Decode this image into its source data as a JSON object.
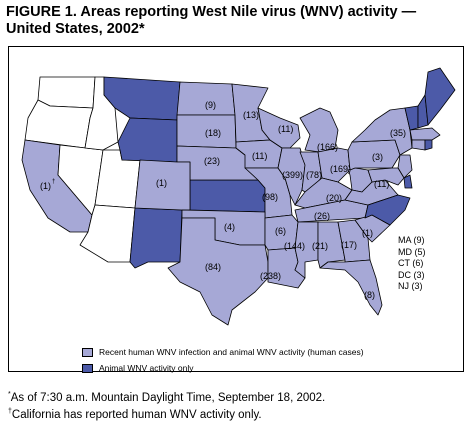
{
  "title": {
    "line1": "FIGURE 1. Areas reporting West Nile virus (WNV) activity —",
    "line2": "United States, 2002*"
  },
  "colors": {
    "human": "#a6a8d6",
    "animal": "#4c5aa8",
    "none": "#ffffff",
    "border": "#000000"
  },
  "state_labels": [
    {
      "id": "mt_label",
      "text": "(9)"
    },
    {
      "id": "mn_label",
      "text": "(13)"
    },
    {
      "id": "wi_label",
      "text": "(11)"
    },
    {
      "id": "mi_label",
      "text": "(166)"
    },
    {
      "id": "ny_label",
      "text": "(35)"
    },
    {
      "id": "sd_label",
      "text": "(18)"
    },
    {
      "id": "ne_label",
      "text": "(23)"
    },
    {
      "id": "ia_label",
      "text": "(11)"
    },
    {
      "id": "il_label",
      "text": "(399)"
    },
    {
      "id": "in_label",
      "text": "(78)"
    },
    {
      "id": "oh_label",
      "text": "(169)"
    },
    {
      "id": "pa_label",
      "text": "(3)"
    },
    {
      "id": "ca_label",
      "text": "(1)"
    },
    {
      "id": "co_label",
      "text": "(1)"
    },
    {
      "id": "mo_label",
      "text": "(98)"
    },
    {
      "id": "ky_label",
      "text": "(20)"
    },
    {
      "id": "va_label",
      "text": "(11)"
    },
    {
      "id": "tn_label",
      "text": "(26)"
    },
    {
      "id": "ok_label",
      "text": "(4)"
    },
    {
      "id": "ar_label",
      "text": "(6)"
    },
    {
      "id": "sc_label",
      "text": "(1)"
    },
    {
      "id": "tx_label",
      "text": "(84)"
    },
    {
      "id": "ms_label",
      "text": "(144)"
    },
    {
      "id": "al_label",
      "text": "(21)"
    },
    {
      "id": "ga_label",
      "text": "(17)"
    },
    {
      "id": "la_label",
      "text": "(238)"
    },
    {
      "id": "fl_label",
      "text": "(8)"
    }
  ],
  "ne_list": [
    "MA (9)",
    "MD (5)",
    "CT (6)",
    "DC (3)",
    "NJ (3)"
  ],
  "legend": {
    "human_label": "Recent human WNV infection and animal WNV activity (human cases)",
    "animal_label": "Animal WNV activity only"
  },
  "footnotes": {
    "star_mark": "*",
    "star_text": "As of 7:30 a.m. Mountain Daylight Time, September 18, 2002.",
    "dagger_mark": "†",
    "dagger_text": "California has reported human WNV activity only."
  }
}
